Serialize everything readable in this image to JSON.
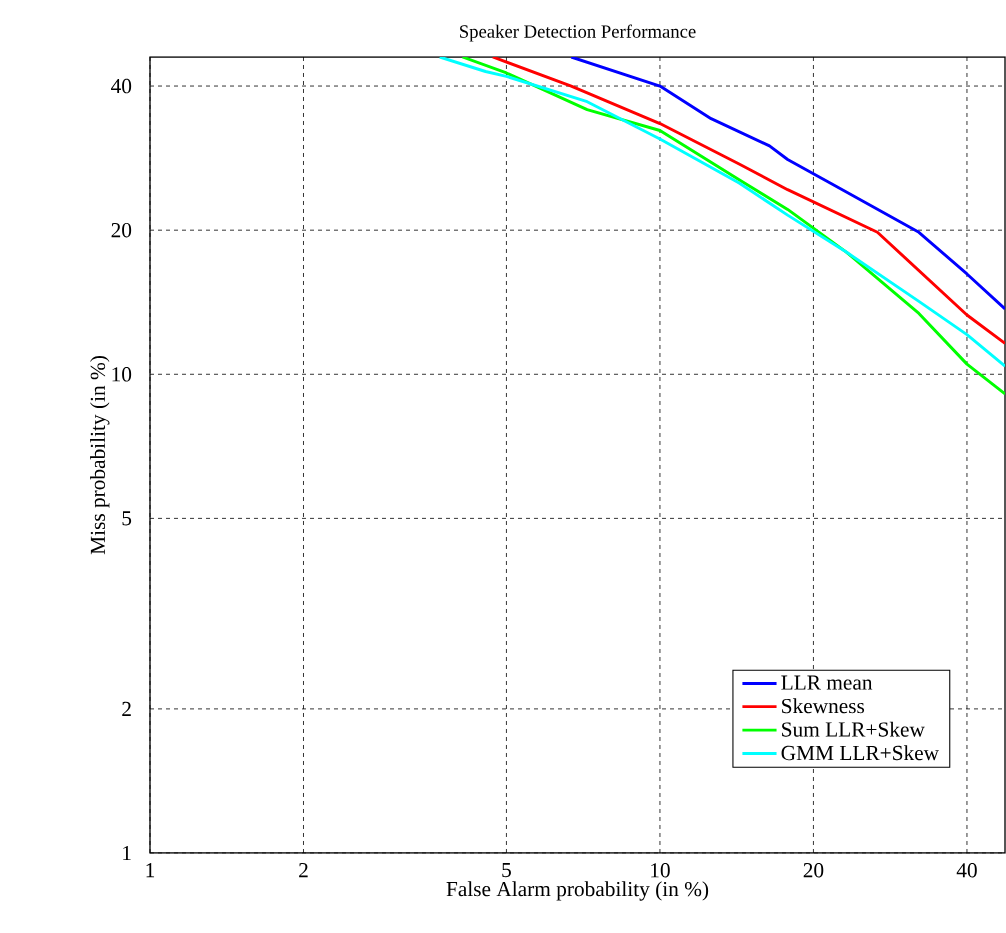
{
  "chart_data": {
    "type": "line",
    "title": "Speaker Detection Performance",
    "xlabel": "False Alarm probability (in %)",
    "ylabel": "Miss probability (in %)",
    "log": "xy",
    "grid": true,
    "legend": "bottom right",
    "xlim": [
      1,
      47.5
    ],
    "ylim": [
      1,
      46
    ],
    "xticks": [
      1,
      2,
      5,
      10,
      20,
      40
    ],
    "yticks": [
      1,
      2,
      5,
      10,
      20,
      40
    ],
    "series": [
      {
        "name": "LLR mean",
        "color": "#0000ff",
        "x": [
          6.7,
          10,
          12.6,
          16.4,
          17.8,
          21.7,
          32.2,
          40,
          47.5
        ],
        "values": [
          46,
          40,
          34.2,
          30.0,
          28.1,
          25.0,
          19.8,
          16.2,
          13.7
        ]
      },
      {
        "name": "Skewness",
        "color": "#ff0000",
        "x": [
          4.7,
          6.7,
          10,
          14.3,
          17.8,
          26.7,
          40,
          47.5
        ],
        "values": [
          46,
          40,
          33.4,
          27.5,
          24.3,
          19.8,
          13.3,
          11.6
        ]
      },
      {
        "name": "Sum LLR+Skew",
        "color": "#00ff00",
        "x": [
          4.1,
          5,
          7.2,
          10,
          14.3,
          17.8,
          23.2,
          32.2,
          40,
          47.5
        ],
        "values": [
          46,
          42.6,
          35.7,
          32.3,
          25.5,
          22.1,
          18.0,
          13.4,
          10.5,
          9.1
        ]
      },
      {
        "name": "GMM LLR+Skew",
        "color": "#00ffff",
        "x": [
          3.7,
          4.55,
          5,
          7.2,
          10,
          14.3,
          17.8,
          23.2,
          32.2,
          40,
          47.5
        ],
        "values": [
          46,
          42.9,
          41.9,
          37.1,
          31.0,
          25.1,
          21.5,
          18.0,
          14.2,
          12.1,
          10.4
        ]
      }
    ]
  }
}
